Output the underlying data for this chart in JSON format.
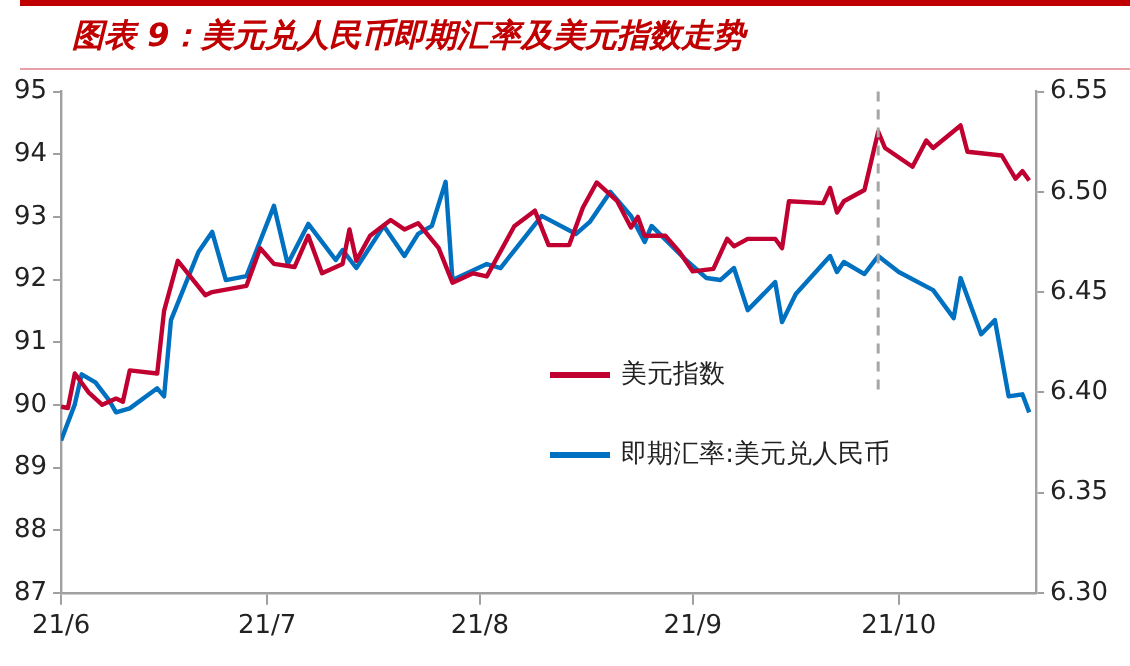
{
  "chart_data": {
    "type": "line",
    "title": "图表 9：美元兑人民币即期汇率及美元指数走势",
    "xlim": [
      "--06-01",
      "--10-21"
    ],
    "xticks": [
      {
        "value": "--06-01",
        "label": "21/6"
      },
      {
        "value": "--07-01",
        "label": "21/7"
      },
      {
        "value": "--08-01",
        "label": "21/8"
      },
      {
        "value": "--09-01",
        "label": "21/9"
      },
      {
        "value": "--10-01",
        "label": "21/10"
      }
    ],
    "ylim": [
      87,
      95
    ],
    "yticks": [
      87,
      88,
      89,
      90,
      91,
      92,
      93,
      94,
      95
    ],
    "y2lim": [
      6.3,
      6.55
    ],
    "y2ticks": [
      {
        "value": 6.3,
        "label": "6.30"
      },
      {
        "value": 6.35,
        "label": "6.35"
      },
      {
        "value": 6.4,
        "label": "6.40"
      },
      {
        "value": 6.45,
        "label": "6.45"
      },
      {
        "value": 6.5,
        "label": "6.50"
      },
      {
        "value": 6.55,
        "label": "6.55"
      }
    ],
    "grid": false,
    "legend": "bottom right",
    "line_style": "solid",
    "marker": "none",
    "ref_lines": [
      {
        "axis": "x",
        "value": "--09-28",
        "color": "#a6a6a6",
        "line_style": "dashed"
      }
    ],
    "series": [
      {
        "name": "美元指数",
        "color": "#c00030",
        "x": [
          "--06-01",
          "--06-02",
          "--06-03",
          "--06-05",
          "--06-07",
          "--06-09",
          "--06-10",
          "--06-11",
          "--06-15",
          "--06-16",
          "--06-18",
          "--06-22",
          "--06-23",
          "--06-28",
          "--06-30",
          "--07-02",
          "--07-05",
          "--07-07",
          "--07-09",
          "--07-12",
          "--07-13",
          "--07-14",
          "--07-16",
          "--07-19",
          "--07-21",
          "--07-23",
          "--07-26",
          "--07-28",
          "--07-31",
          "--08-02",
          "--08-06",
          "--08-09",
          "--08-11",
          "--08-14",
          "--08-16",
          "--08-18",
          "--08-21",
          "--08-23",
          "--08-24",
          "--08-25",
          "--08-28",
          "--08-30",
          "--09-01",
          "--09-04",
          "--09-06",
          "--09-07",
          "--09-09",
          "--09-13",
          "--09-14",
          "--09-15",
          "--09-20",
          "--09-21",
          "--09-22",
          "--09-23",
          "--09-26",
          "--09-28",
          "--09-29",
          "--10-03",
          "--10-05",
          "--10-06",
          "--10-10",
          "--10-11",
          "--10-16",
          "--10-18",
          "--10-19",
          "--10-20"
        ],
        "values": [
          89.97,
          89.95,
          90.5,
          90.2,
          90.0,
          90.1,
          90.05,
          90.55,
          90.5,
          91.5,
          92.3,
          91.75,
          91.8,
          91.9,
          92.5,
          92.25,
          92.2,
          92.7,
          92.1,
          92.25,
          92.8,
          92.3,
          92.7,
          92.95,
          92.8,
          92.9,
          92.5,
          91.95,
          92.1,
          92.05,
          92.85,
          93.1,
          92.55,
          92.55,
          93.15,
          93.55,
          93.25,
          92.83,
          93.0,
          92.7,
          92.7,
          92.45,
          92.13,
          92.17,
          92.65,
          92.53,
          92.65,
          92.65,
          92.5,
          93.25,
          93.22,
          93.46,
          93.07,
          93.25,
          93.43,
          94.36,
          94.1,
          93.8,
          94.22,
          94.1,
          94.46,
          94.04,
          93.98,
          93.61,
          93.73,
          93.58
        ]
      },
      {
        "name": "即期汇率:美元兑人民币",
        "color": "#0070c0",
        "axis": "y2",
        "x": [
          "--06-01",
          "--06-03",
          "--06-04",
          "--06-06",
          "--06-08",
          "--06-09",
          "--06-11",
          "--06-15",
          "--06-16",
          "--06-17",
          "--06-21",
          "--06-23",
          "--06-25",
          "--06-28",
          "--07-02",
          "--07-04",
          "--07-07",
          "--07-11",
          "--07-12",
          "--07-14",
          "--07-18",
          "--07-21",
          "--07-23",
          "--07-25",
          "--07-27",
          "--07-28",
          "--08-02",
          "--08-04",
          "--08-10",
          "--08-15",
          "--08-17",
          "--08-20",
          "--08-23",
          "--08-25",
          "--08-26",
          "--08-31",
          "--09-03",
          "--09-05",
          "--09-07",
          "--09-09",
          "--09-13",
          "--09-14",
          "--09-16",
          "--09-21",
          "--09-22",
          "--09-23",
          "--09-26",
          "--09-28",
          "--10-01",
          "--10-06",
          "--10-09",
          "--10-10",
          "--10-13",
          "--10-15",
          "--10-17",
          "--10-19",
          "--10-20"
        ],
        "values": [
          6.376,
          6.394,
          6.409,
          6.405,
          6.396,
          6.39,
          6.392,
          6.402,
          6.398,
          6.436,
          6.47,
          6.48,
          6.456,
          6.458,
          6.493,
          6.464,
          6.484,
          6.466,
          6.471,
          6.462,
          6.483,
          6.468,
          6.479,
          6.483,
          6.505,
          6.456,
          6.464,
          6.462,
          6.488,
          6.479,
          6.485,
          6.5,
          6.488,
          6.475,
          6.483,
          6.466,
          6.457,
          6.456,
          6.462,
          6.441,
          6.455,
          6.435,
          6.449,
          6.468,
          6.46,
          6.465,
          6.459,
          6.468,
          6.46,
          6.451,
          6.437,
          6.457,
          6.429,
          6.436,
          6.398,
          6.399,
          6.39
        ]
      }
    ]
  }
}
